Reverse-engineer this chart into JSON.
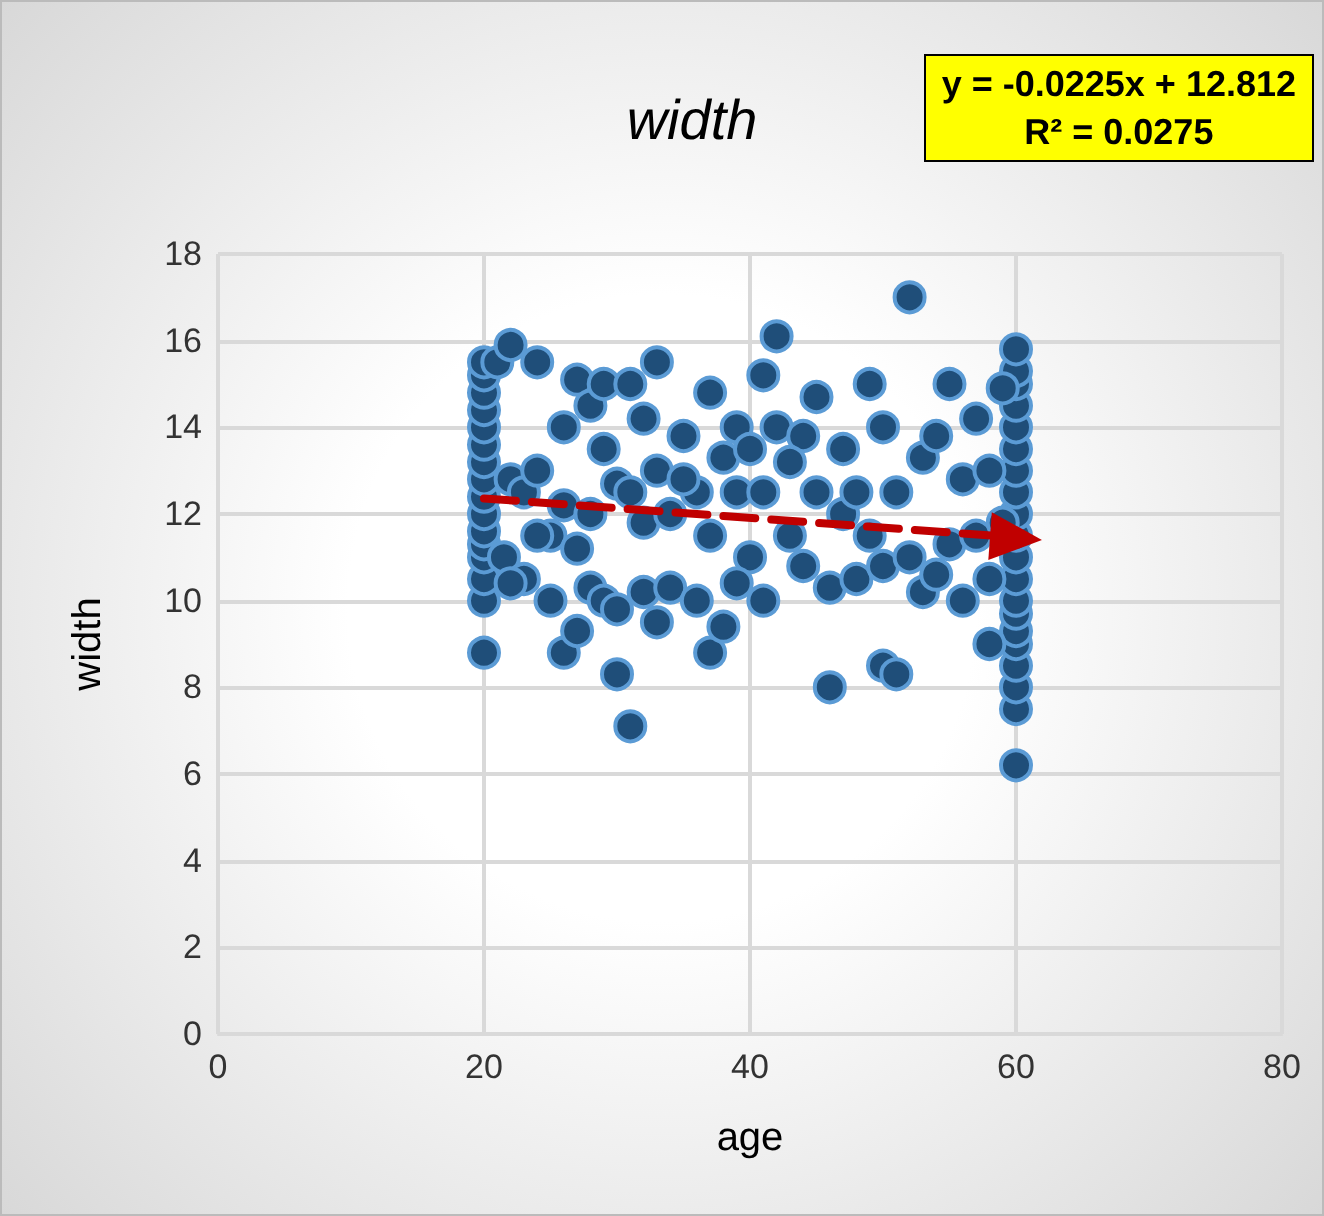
{
  "chart_data": {
    "type": "scatter",
    "title": "width",
    "xlabel": "age",
    "ylabel": "width",
    "annotations": [
      "y = -0.0225x + 12.812",
      "R² = 0.0275"
    ],
    "xlim": [
      0,
      80
    ],
    "xticks": [
      0,
      20,
      40,
      60,
      80
    ],
    "ylim": [
      0,
      18
    ],
    "yticks": [
      0,
      2,
      4,
      6,
      8,
      10,
      12,
      14,
      16,
      18
    ],
    "grid": true,
    "series": [
      {
        "color": "#1f4e79",
        "marker": "circle",
        "x": [
          20,
          20,
          20,
          20,
          20,
          20,
          20,
          20,
          20,
          20,
          20,
          20,
          20,
          20,
          20,
          20,
          60,
          60,
          60,
          60,
          60,
          60,
          60,
          60,
          60,
          60,
          60,
          60,
          60,
          60,
          60,
          60,
          60,
          60,
          60,
          60,
          21,
          22,
          21.5,
          22,
          23,
          23,
          24,
          24,
          25,
          25,
          26,
          26,
          26,
          27,
          27,
          27,
          28,
          28,
          28,
          29,
          29,
          29,
          30,
          30,
          30,
          31,
          31,
          31,
          32,
          32,
          32,
          33,
          33,
          34,
          34,
          35,
          36,
          36,
          37,
          37,
          37,
          38,
          38,
          39,
          39,
          40,
          40,
          41,
          41,
          41,
          42,
          42,
          43,
          44,
          44,
          45,
          45,
          46,
          46,
          47,
          47,
          48,
          49,
          49,
          50,
          50,
          50,
          51,
          51,
          52,
          52,
          53,
          53,
          54,
          54,
          55,
          55,
          56,
          56,
          57,
          57,
          58,
          58,
          58,
          59,
          59,
          22,
          24,
          33,
          35,
          39,
          43,
          48
        ],
        "values": [
          8.8,
          10,
          10.5,
          11,
          11.3,
          11.6,
          12,
          12.4,
          12.8,
          13.2,
          13.6,
          14,
          14.4,
          14.8,
          15.2,
          15.5,
          6.2,
          7.5,
          8,
          8.5,
          9,
          9.3,
          9.7,
          10,
          10.5,
          11,
          11.5,
          12,
          12.5,
          13,
          13.5,
          14,
          14.5,
          15,
          15.3,
          15.8,
          15.5,
          15.9,
          11,
          12.8,
          10.5,
          12.5,
          15.5,
          13,
          10,
          11.5,
          8.8,
          12.2,
          14,
          15.1,
          11.2,
          9.3,
          14.5,
          12,
          10.3,
          13.5,
          15,
          10,
          9.8,
          12.7,
          8.3,
          7.1,
          15,
          12.5,
          14.2,
          10.2,
          11.8,
          15.5,
          13,
          12,
          10.3,
          13.8,
          10,
          12.5,
          14.8,
          11.5,
          8.8,
          9.4,
          13.3,
          12.5,
          14,
          11,
          13.5,
          10,
          15.2,
          12.5,
          16.1,
          14,
          11.5,
          13.8,
          10.8,
          14.7,
          12.5,
          8,
          10.3,
          13.5,
          12,
          10.5,
          15,
          11.5,
          8.5,
          14,
          10.8,
          8.3,
          12.5,
          17,
          11,
          10.2,
          13.3,
          10.6,
          13.8,
          15,
          11.3,
          10,
          12.8,
          14.2,
          11.5,
          9,
          13,
          10.5,
          14.9,
          11.8,
          10.4,
          11.5,
          9.5,
          12.8,
          10.4,
          13.2,
          12.5
        ]
      },
      {
        "type": "line",
        "color": "#c00000",
        "line_style": "dashed",
        "x": [
          20,
          60
        ],
        "values": [
          12.36,
          11.46
        ]
      }
    ]
  }
}
